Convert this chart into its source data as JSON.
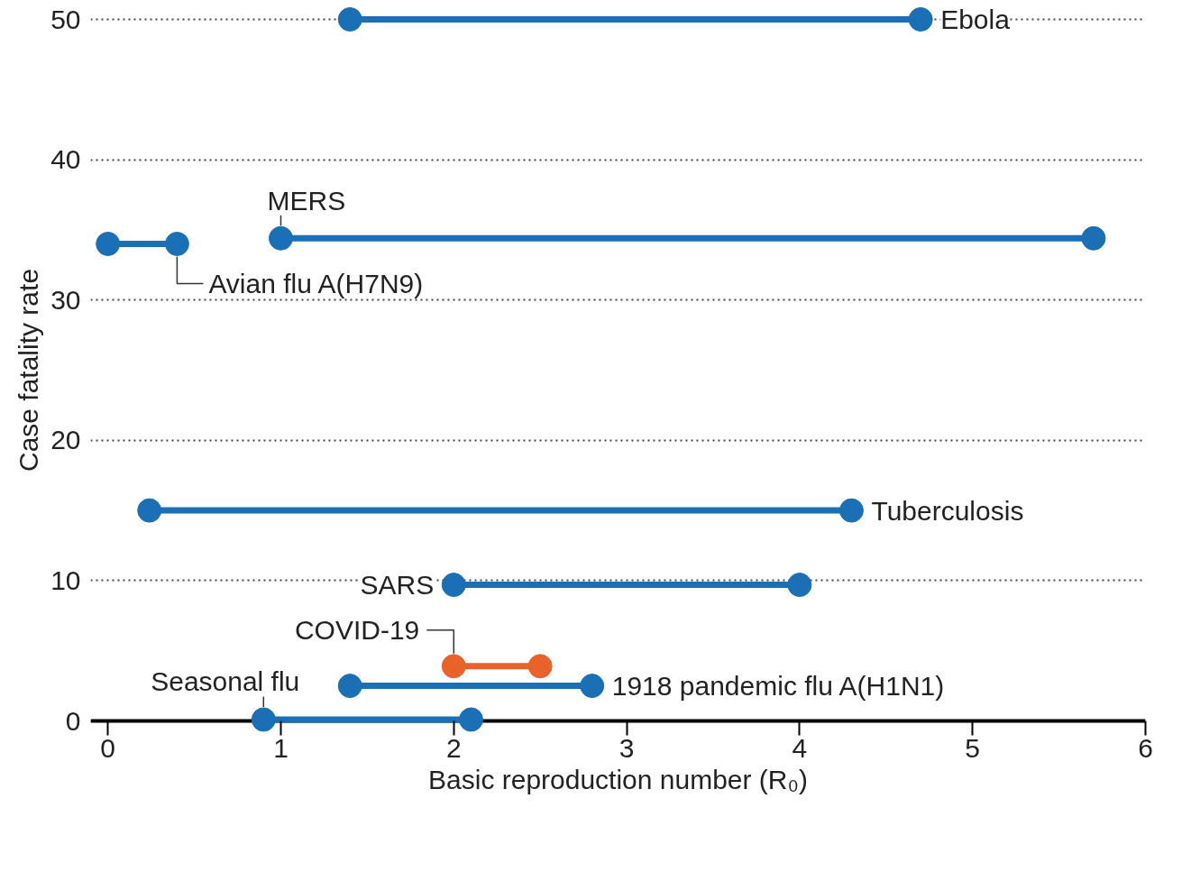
{
  "chart_data": {
    "type": "line",
    "xlabel": "Basic reproduction number (R₀)",
    "ylabel": "Case fatality rate",
    "xlim": [
      -0.1,
      6
    ],
    "xticks": [
      0,
      1,
      2,
      3,
      4,
      5,
      6
    ],
    "ylim": [
      0,
      50
    ],
    "yticks": [
      0,
      10,
      20,
      30,
      40,
      50
    ],
    "grid": "y",
    "marker": "circle",
    "line_style": "solid",
    "series": [
      {
        "name": "Ebola",
        "color": "#1a6fb5",
        "x": [
          1.4,
          4.7
        ],
        "values": [
          50,
          50
        ]
      },
      {
        "name": "MERS",
        "color": "#1a6fb5",
        "x": [
          1.0,
          5.7
        ],
        "values": [
          34.4,
          34.4
        ]
      },
      {
        "name": "Avian flu A(H7N9)",
        "color": "#1a6fb5",
        "x": [
          0.0,
          0.4
        ],
        "values": [
          34,
          34
        ]
      },
      {
        "name": "Tuberculosis",
        "color": "#1a6fb5",
        "x": [
          0.24,
          4.3
        ],
        "values": [
          15,
          15
        ]
      },
      {
        "name": "SARS",
        "color": "#1a6fb5",
        "x": [
          2.0,
          4.0
        ],
        "values": [
          9.7,
          9.7
        ]
      },
      {
        "name": "COVID-19",
        "color": "#e8622a",
        "x": [
          2.0,
          2.5
        ],
        "values": [
          3.9,
          3.9
        ]
      },
      {
        "name": "1918 pandemic flu A(H1N1)",
        "color": "#1a6fb5",
        "x": [
          1.4,
          2.8
        ],
        "values": [
          2.5,
          2.5
        ]
      },
      {
        "name": "Seasonal flu",
        "color": "#1a6fb5",
        "x": [
          0.9,
          2.1
        ],
        "values": [
          0.1,
          0.1
        ]
      }
    ]
  }
}
